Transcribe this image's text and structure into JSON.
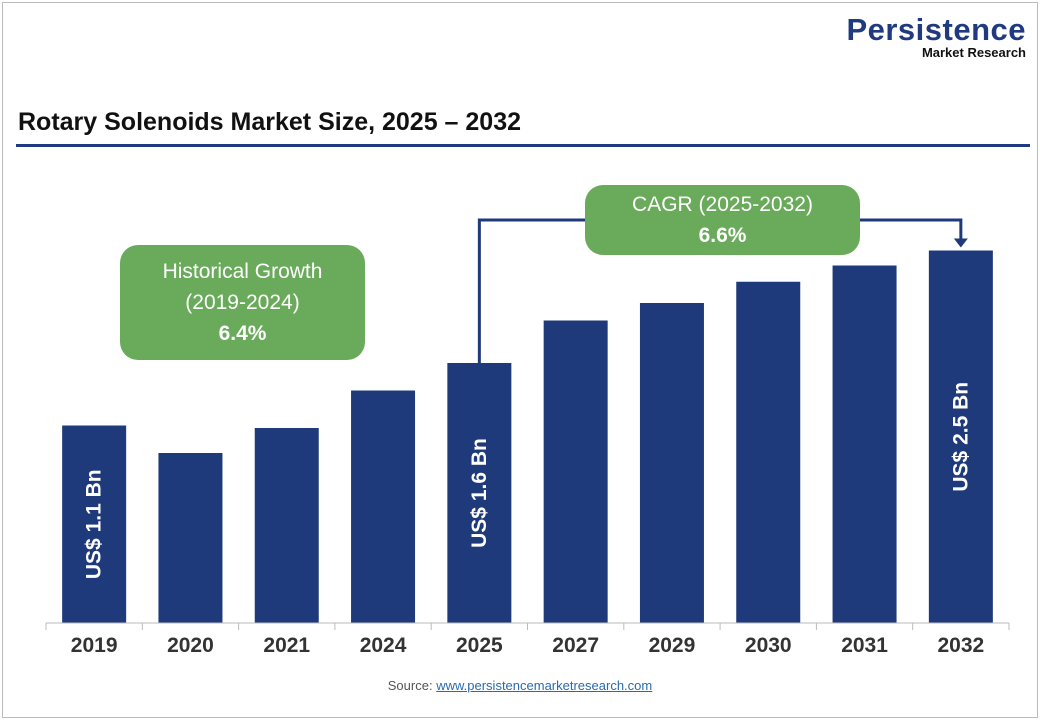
{
  "logo": {
    "line1": "Persistence",
    "line2": "Market Research"
  },
  "chart_data": {
    "type": "bar",
    "title": "Rotary Solenoids Market Size, 2025 – 2032",
    "categories": [
      "2019",
      "2020",
      "2021",
      "2024",
      "2025",
      "2027",
      "2029",
      "2030",
      "2031",
      "2032"
    ],
    "values": [
      1.1,
      0.88,
      1.08,
      1.38,
      1.6,
      1.94,
      2.08,
      2.25,
      2.38,
      2.5
    ],
    "data_labels": {
      "0": "US$ 1.1 Bn",
      "4": "US$ 1.6 Bn",
      "9": "US$ 2.5 Bn"
    },
    "bar_color": "#1f3a7a",
    "grid": false,
    "annotations": {
      "historical": {
        "line1": "Historical Growth",
        "line2": "(2019-2024)",
        "value": "6.4%"
      },
      "cagr": {
        "line1": "CAGR (2025-2032)",
        "value": "6.6%"
      },
      "box_color": "#6aaa5b"
    }
  },
  "source": {
    "label": "Source:",
    "link": "www.persistencemarketresearch.com"
  }
}
